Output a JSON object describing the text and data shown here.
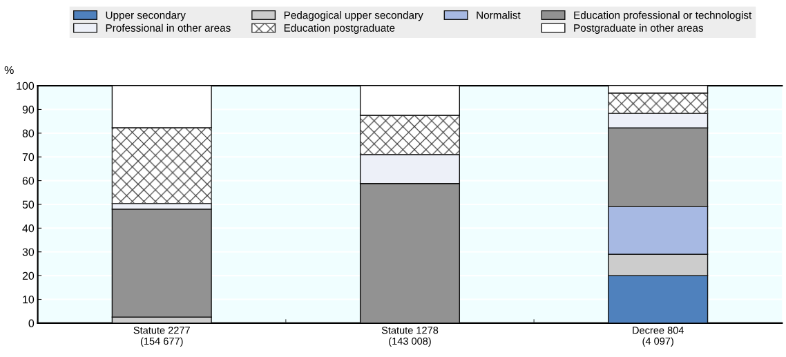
{
  "chart_data": {
    "type": "bar",
    "stacked": true,
    "ylabel": "%",
    "categories": [
      "Statute 2277\n(154 677)",
      "Statute 1278\n(143 008)",
      "Decree 804\n(4 097)"
    ],
    "series": [
      {
        "name": "Upper secondary",
        "color": "#4f81bd",
        "values": [
          0,
          0,
          20
        ]
      },
      {
        "name": "Pedagogical upper secondary",
        "color": "#cccccc",
        "values": [
          2.5,
          null,
          9
        ]
      },
      {
        "name": "Normalist",
        "color": "#a7b9e3",
        "values": [
          0,
          0,
          20
        ]
      },
      {
        "name": "Education professional or technologist",
        "color": "#929292",
        "values": [
          45.5,
          58.8,
          33.2
        ]
      },
      {
        "name": "Professional in other areas",
        "color": "#edf0f8",
        "values": [
          2.4,
          12.2,
          6.1
        ]
      },
      {
        "name": "Education postgraduate",
        "color": "#333333",
        "values": [
          31.9,
          16.5,
          8.6
        ]
      },
      {
        "name": "Postgraduate in other areas",
        "color": "#ffffff",
        "values": [
          17.7,
          12.5,
          3.2
        ]
      }
    ],
    "ylim": [
      0,
      100
    ],
    "yticks": [
      0,
      10,
      20,
      30,
      40,
      50,
      60,
      70,
      80,
      90,
      100
    ],
    "grid": "y",
    "legend": "top"
  }
}
